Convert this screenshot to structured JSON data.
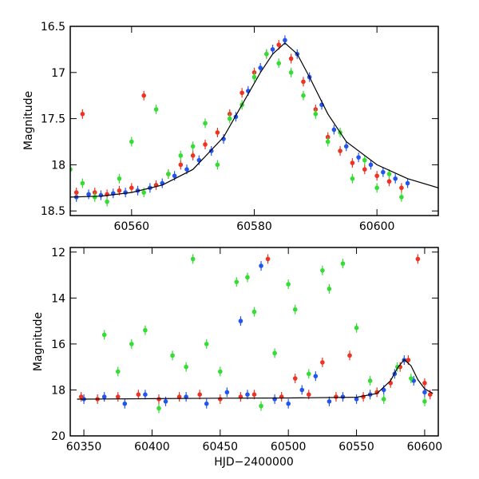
{
  "chart_data": [
    {
      "type": "scatter",
      "title": "",
      "xlabel": "",
      "ylabel": "Magnitude",
      "xlim": [
        60550,
        60610
      ],
      "ylim": [
        18.55,
        16.5
      ],
      "y_inverted": true,
      "grid": false,
      "legend": "none",
      "xticks": [
        "60560",
        "60580",
        "60600"
      ],
      "yticks": [
        "16.5",
        "17",
        "17.5",
        "18",
        "18.5"
      ],
      "series": [
        {
          "color": "#2255ee",
          "marker": "circle with error bars",
          "x": [
            60551,
            60553,
            60555,
            60557,
            60559,
            60561,
            60563,
            60565,
            60567,
            60569,
            60571,
            60573,
            60575,
            60577,
            60579,
            60581,
            60583,
            60585,
            60587,
            60589,
            60591,
            60593,
            60595,
            60597,
            60599,
            60601,
            60603,
            60605
          ],
          "y": [
            18.35,
            18.32,
            18.33,
            18.31,
            18.3,
            18.28,
            18.25,
            18.2,
            18.12,
            18.05,
            17.95,
            17.85,
            17.72,
            17.48,
            17.2,
            16.95,
            16.75,
            16.65,
            16.8,
            17.05,
            17.35,
            17.62,
            17.8,
            17.92,
            18.0,
            18.08,
            18.15,
            18.2
          ]
        },
        {
          "color": "#ee3322",
          "marker": "circle with error bars",
          "x": [
            60551,
            60552,
            60554,
            60556,
            60558,
            60560,
            60562,
            60564,
            60566,
            60568,
            60570,
            60572,
            60574,
            60576,
            60578,
            60580,
            60582,
            60584,
            60586,
            60588,
            60590,
            60592,
            60594,
            60596,
            60598,
            60600,
            60602,
            60604
          ],
          "y": [
            18.3,
            17.45,
            18.3,
            18.32,
            18.28,
            18.25,
            17.25,
            18.22,
            18.1,
            18.0,
            17.9,
            17.78,
            17.65,
            17.45,
            17.22,
            17.0,
            16.8,
            16.7,
            16.85,
            17.1,
            17.4,
            17.7,
            17.85,
            17.98,
            18.05,
            18.12,
            18.18,
            18.25
          ]
        },
        {
          "color": "#33dd33",
          "marker": "circle with error bars",
          "x": [
            60550,
            60552,
            60554,
            60556,
            60558,
            60560,
            60562,
            60564,
            60566,
            60568,
            60570,
            60572,
            60574,
            60576,
            60578,
            60580,
            60582,
            60584,
            60586,
            60588,
            60590,
            60592,
            60594,
            60596,
            60598,
            60600,
            60602,
            60604
          ],
          "y": [
            18.05,
            18.2,
            18.35,
            18.4,
            18.15,
            17.75,
            18.3,
            17.4,
            18.1,
            17.9,
            17.8,
            17.55,
            18.0,
            17.5,
            17.35,
            17.05,
            16.8,
            16.9,
            17.0,
            17.25,
            17.45,
            17.75,
            17.65,
            18.15,
            17.95,
            18.25,
            18.1,
            18.35
          ]
        }
      ],
      "model_curve": {
        "color": "#000000",
        "x": [
          60550,
          60555,
          60560,
          60565,
          60570,
          60575,
          60578,
          60581,
          60583,
          60585,
          60587,
          60589,
          60592,
          60595,
          60600,
          60605,
          60610
        ],
        "y": [
          18.35,
          18.34,
          18.3,
          18.22,
          18.05,
          17.7,
          17.35,
          17.0,
          16.8,
          16.68,
          16.8,
          17.05,
          17.45,
          17.75,
          18.0,
          18.15,
          18.25
        ]
      }
    },
    {
      "type": "scatter",
      "title": "",
      "xlabel": "HJD−2400000",
      "ylabel": "Magnitude",
      "xlim": [
        60340,
        60610
      ],
      "ylim": [
        20,
        11.8
      ],
      "y_inverted": true,
      "grid": false,
      "legend": "none",
      "xticks": [
        "60350",
        "60400",
        "60450",
        "60500",
        "60550",
        "60600"
      ],
      "yticks": [
        "12",
        "14",
        "16",
        "18",
        "20"
      ],
      "series": [
        {
          "color": "#2255ee",
          "marker": "circle with error bars",
          "x": [
            60350,
            60365,
            60380,
            60395,
            60410,
            60425,
            60440,
            60455,
            60465,
            60470,
            60480,
            60490,
            60500,
            60510,
            60520,
            60530,
            60540,
            60550,
            60560,
            60570,
            60578,
            60585,
            60592,
            60600
          ],
          "y": [
            18.4,
            18.3,
            18.6,
            18.2,
            18.5,
            18.3,
            18.6,
            18.1,
            15.0,
            18.2,
            12.6,
            18.4,
            18.6,
            18.0,
            17.4,
            18.5,
            18.3,
            18.4,
            18.2,
            18.0,
            17.3,
            16.7,
            17.6,
            18.1
          ]
        },
        {
          "color": "#ee3322",
          "marker": "circle with error bars",
          "x": [
            60348,
            60360,
            60375,
            60390,
            60405,
            60420,
            60435,
            60450,
            60465,
            60475,
            60485,
            60495,
            60505,
            60515,
            60525,
            60535,
            60545,
            60555,
            60565,
            60575,
            60582,
            60588,
            60595,
            60600,
            60604
          ],
          "y": [
            18.3,
            18.4,
            18.3,
            18.2,
            18.4,
            18.3,
            18.2,
            18.4,
            18.3,
            18.2,
            12.3,
            18.3,
            17.5,
            18.2,
            16.8,
            18.3,
            16.5,
            18.3,
            18.1,
            17.7,
            17.0,
            16.7,
            12.3,
            17.7,
            18.2
          ]
        },
        {
          "color": "#33dd33",
          "marker": "circle with error bars",
          "x": [
            60365,
            60375,
            60385,
            60395,
            60405,
            60415,
            60425,
            60430,
            60440,
            60450,
            60462,
            60470,
            60475,
            60480,
            60490,
            60500,
            60505,
            60515,
            60525,
            60530,
            60540,
            60550,
            60560,
            60570,
            60580,
            60590,
            60600
          ],
          "y": [
            15.6,
            17.2,
            16.0,
            15.4,
            18.8,
            16.5,
            17.0,
            12.3,
            16.0,
            17.2,
            13.3,
            13.1,
            14.6,
            18.7,
            16.4,
            13.4,
            14.5,
            17.3,
            12.8,
            13.6,
            12.5,
            15.3,
            17.6,
            18.4,
            17.0,
            17.5,
            18.5
          ]
        }
      ],
      "model_curve": {
        "color": "#000000",
        "x": [
          60345,
          60400,
          60450,
          60500,
          60550,
          60565,
          60575,
          60580,
          60585,
          60590,
          60595,
          60600,
          60606
        ],
        "y": [
          18.4,
          18.38,
          18.36,
          18.35,
          18.32,
          18.15,
          17.6,
          17.05,
          16.68,
          16.95,
          17.55,
          17.95,
          18.15
        ]
      }
    }
  ]
}
